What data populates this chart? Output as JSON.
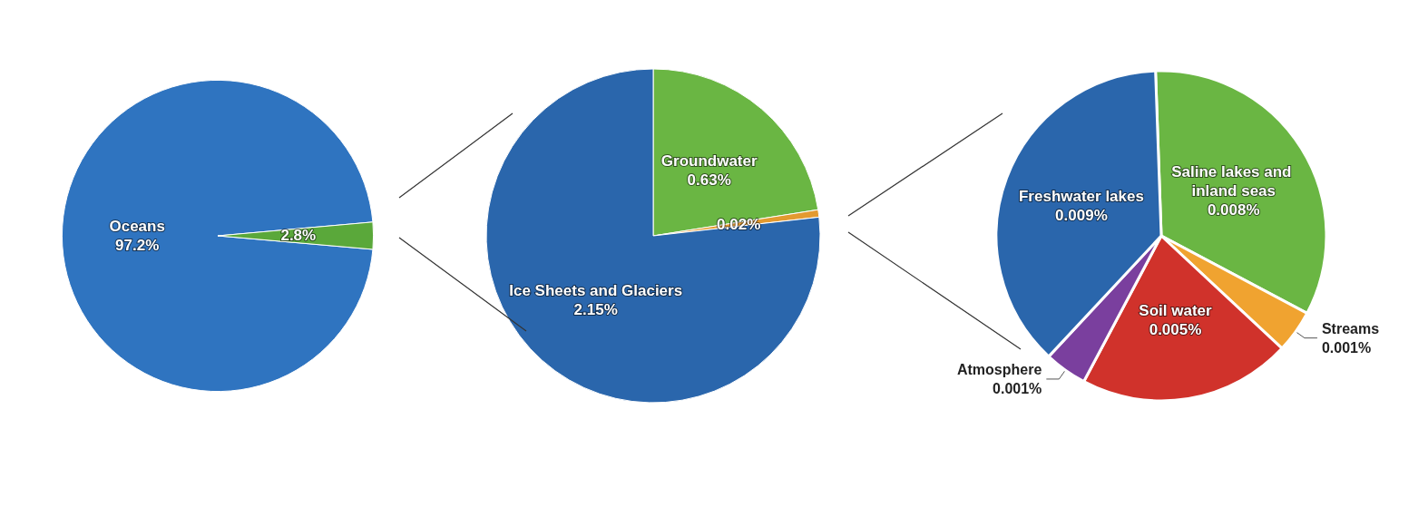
{
  "chart_data": [
    {
      "type": "pie",
      "categories": [
        "Oceans",
        null
      ],
      "values": [
        97.2,
        2.8
      ],
      "colors": [
        "#2f74c0",
        "#5aa83a"
      ],
      "value_labels": [
        "97.2%",
        "2.8%"
      ]
    },
    {
      "type": "pie",
      "categories": [
        "Groundwater",
        null,
        "Ice Sheets and Glaciers"
      ],
      "values": [
        0.63,
        0.02,
        2.15
      ],
      "colors": [
        "#6ab643",
        "#e39a30",
        "#2a66ac"
      ],
      "value_labels": [
        "0.63%",
        "0.02%",
        "2.15%"
      ]
    },
    {
      "type": "pie",
      "categories": [
        "Saline lakes and inland seas",
        "Streams",
        "Soil water",
        "Atmosphere",
        "Freshwater lakes"
      ],
      "values": [
        0.008,
        0.001,
        0.005,
        0.001,
        0.009
      ],
      "colors": [
        "#6ab643",
        "#f0a330",
        "#d0322b",
        "#7a3f9e",
        "#2a66ac"
      ],
      "value_labels": [
        "0.008%",
        "0.001%",
        "0.005%",
        "0.001%",
        "0.009%"
      ]
    }
  ]
}
